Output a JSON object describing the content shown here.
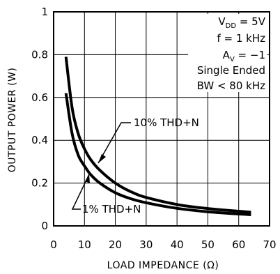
{
  "chart_data": {
    "type": "line",
    "title": "",
    "xlabel": "LOAD IMPEDANCE (Ω)",
    "ylabel": "OUTPUT POWER (W)",
    "xlim": [
      0,
      70
    ],
    "ylim": [
      0,
      1
    ],
    "xticks": [
      0,
      10,
      20,
      30,
      40,
      50,
      60,
      70
    ],
    "yticks": [
      0,
      0.2,
      0.4,
      0.6,
      0.8,
      1
    ],
    "ytick_labels": [
      "0",
      "0.2",
      "0.4",
      "0.6",
      "0.8",
      "1"
    ],
    "grid": true,
    "series": [
      {
        "name": "10% THD+N",
        "x": [
          4,
          6,
          8,
          10,
          12,
          15,
          20,
          25,
          30,
          40,
          50,
          64
        ],
        "y": [
          0.79,
          0.55,
          0.43,
          0.36,
          0.31,
          0.26,
          0.2,
          0.16,
          0.133,
          0.1,
          0.081,
          0.064
        ]
      },
      {
        "name": "1% THD+N",
        "x": [
          4,
          6,
          8,
          10,
          12,
          15,
          20,
          25,
          30,
          40,
          50,
          64
        ],
        "y": [
          0.62,
          0.43,
          0.33,
          0.28,
          0.24,
          0.2,
          0.155,
          0.127,
          0.108,
          0.082,
          0.066,
          0.052
        ]
      }
    ],
    "conditions": {
      "vdd": {
        "main": "V",
        "sub": "DD",
        "rest": " = 5V"
      },
      "freq": "f = 1 kHz",
      "av": {
        "main": "A",
        "sub": "V",
        "rest": " = −1"
      },
      "mode": "Single Ended",
      "bw": "BW < 80 kHz"
    }
  }
}
